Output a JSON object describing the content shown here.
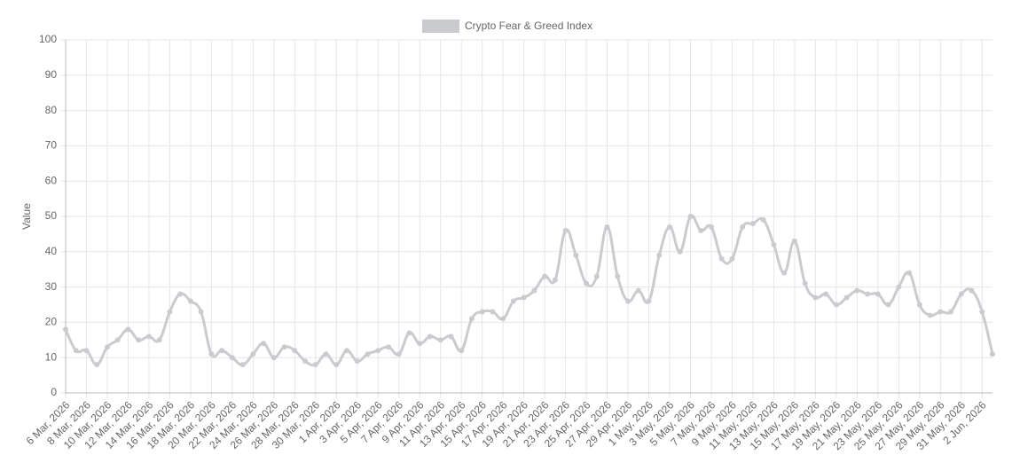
{
  "chart_data": {
    "type": "line",
    "y_label": "Value",
    "categories": [
      "6 Mar, 2026",
      null,
      "8 Mar, 2026",
      null,
      "10 Mar, 2026",
      null,
      "12 Mar, 2026",
      null,
      "14 Mar, 2026",
      null,
      "16 Mar, 2026",
      null,
      "18 Mar, 2026",
      null,
      "20 Mar, 2026",
      null,
      "22 Mar, 2026",
      null,
      "24 Mar, 2026",
      null,
      "26 Mar, 2026",
      null,
      "28 Mar, 2026",
      null,
      "30 Mar, 2026",
      null,
      "1 Apr, 2026",
      null,
      "3 Apr, 2026",
      null,
      "5 Apr, 2026",
      null,
      "7 Apr, 2026",
      null,
      "9 Apr, 2026",
      null,
      "11 Apr, 2026",
      null,
      "13 Apr, 2026",
      null,
      "15 Apr, 2026",
      null,
      "17 Apr, 2026",
      null,
      "19 Apr, 2026",
      null,
      "21 Apr, 2026",
      null,
      "23 Apr, 2026",
      null,
      "25 Apr, 2026",
      null,
      "27 Apr, 2026",
      null,
      "29 Apr, 2026",
      null,
      "1 May, 2026",
      null,
      "3 May, 2026",
      null,
      "5 May, 2026",
      null,
      "7 May, 2026",
      null,
      "9 May, 2026",
      null,
      "11 May, 2026",
      null,
      "13 May, 2026",
      null,
      "15 May, 2026",
      null,
      "17 May, 2026",
      null,
      "19 May, 2026",
      null,
      "21 May, 2026",
      null,
      "23 May, 2026",
      null,
      "25 May, 2026",
      null,
      "27 May, 2026",
      null,
      "29 May, 2026",
      null,
      "31 May, 2026",
      null,
      "2 Jun, 2026",
      null
    ],
    "series": [
      {
        "name": "Crypto Fear & Greed Index",
        "color": "#c9cbcf",
        "values": [
          18,
          12,
          12,
          8,
          13,
          15,
          18,
          15,
          16,
          15,
          23,
          28,
          26,
          23,
          11,
          12,
          10,
          8,
          11,
          14,
          10,
          13,
          12,
          9,
          8,
          11,
          8,
          12,
          9,
          11,
          12,
          13,
          11,
          17,
          14,
          16,
          15,
          16,
          12,
          21,
          23,
          23,
          21,
          26,
          27,
          29,
          33,
          32,
          46,
          39,
          31,
          33,
          47,
          33,
          26,
          29,
          26,
          39,
          47,
          40,
          50,
          46,
          47,
          38,
          38,
          47,
          48,
          49,
          42,
          34,
          43,
          31,
          27,
          28,
          25,
          27,
          29,
          28,
          28,
          25,
          30,
          34,
          25,
          22,
          23,
          23,
          28,
          29,
          23,
          11
        ]
      }
    ],
    "ylim": [
      0,
      100
    ],
    "yticks": [
      0,
      10,
      20,
      30,
      40,
      50,
      60,
      70,
      80,
      90,
      100
    ],
    "grid": true,
    "legend": "top"
  }
}
